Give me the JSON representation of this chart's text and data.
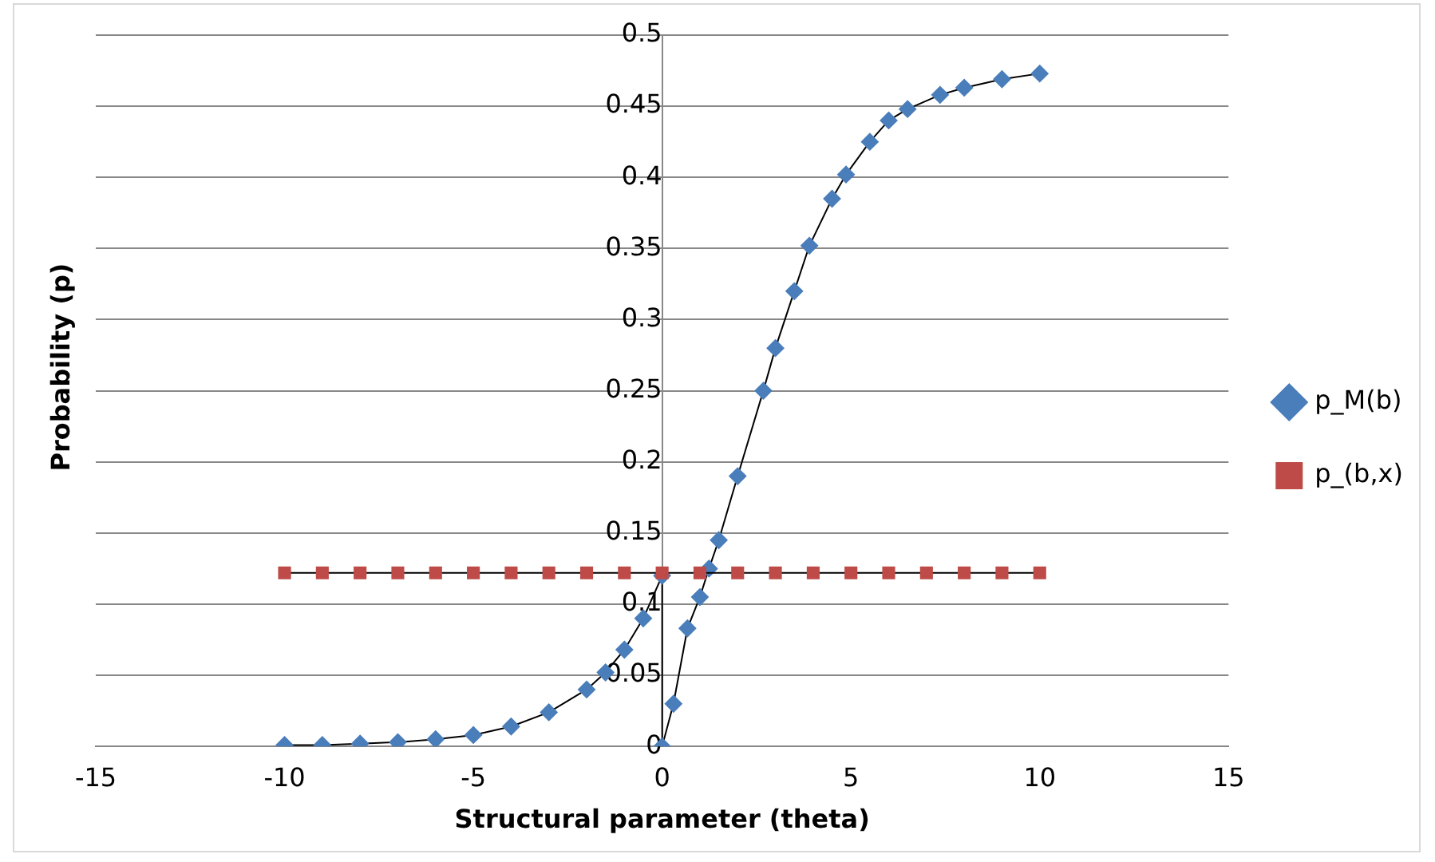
{
  "chart_data": {
    "type": "line",
    "xlabel": "Structural parameter (theta)",
    "ylabel": "Probability (p)",
    "xlim": [
      -15,
      15
    ],
    "xticks": [
      -15,
      -10,
      -5,
      0,
      5,
      10,
      15
    ],
    "ylim": [
      0,
      0.5
    ],
    "yticks": [
      0,
      0.05,
      0.1,
      0.15,
      0.2,
      0.25,
      0.3,
      0.35,
      0.4,
      0.45,
      0.5
    ],
    "grid": "y",
    "legend": "right",
    "series": [
      {
        "name": "p_M(b)",
        "color": "#4a7ebb",
        "marker": "diamond",
        "x": [
          -10,
          -9,
          -8,
          -7,
          -6,
          -5,
          -4,
          -3,
          -2,
          -1.5,
          -1,
          -0.5,
          0,
          0,
          0.3,
          0.67,
          1,
          1.24,
          1.5,
          2,
          2.68,
          3,
          3.5,
          3.9,
          4.5,
          4.87,
          5.5,
          6,
          6.5,
          7.36,
          8,
          9,
          10
        ],
        "values": [
          0.001,
          0.001,
          0.002,
          0.003,
          0.005,
          0.008,
          0.014,
          0.024,
          0.04,
          0.052,
          0.068,
          0.09,
          0.12,
          0,
          0.03,
          0.083,
          0.105,
          0.125,
          0.145,
          0.19,
          0.25,
          0.28,
          0.32,
          0.352,
          0.385,
          0.402,
          0.425,
          0.44,
          0.448,
          0.458,
          0.463,
          0.469,
          0.473
        ]
      },
      {
        "name": "p_(b,x)",
        "color": "#be4b48",
        "marker": "square",
        "x": [
          -10,
          -9,
          -8,
          -7,
          -6,
          -5,
          -4,
          -3,
          -2,
          -1,
          0,
          1,
          2,
          3,
          4,
          5,
          6,
          7,
          8,
          9,
          10
        ],
        "values": [
          0.122,
          0.122,
          0.122,
          0.122,
          0.122,
          0.122,
          0.122,
          0.122,
          0.122,
          0.122,
          0.122,
          0.122,
          0.122,
          0.122,
          0.122,
          0.122,
          0.122,
          0.122,
          0.122,
          0.122,
          0.122
        ]
      }
    ]
  }
}
